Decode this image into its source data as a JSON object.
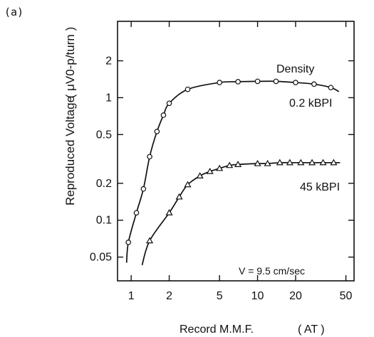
{
  "chart_data": {
    "type": "line",
    "panel_label": "(a)",
    "xlabel": "Record M.M.F.",
    "xunit": "( AT )",
    "ylabel": "Reproduced Voltage",
    "yunit": "( μV0-p/turn )",
    "xscale": "log",
    "yscale": "log",
    "xlim": [
      0.78,
      58
    ],
    "ylim": [
      0.032,
      4.2
    ],
    "xticks": [
      {
        "value": 1,
        "label": "1"
      },
      {
        "value": 2,
        "label": "2"
      },
      {
        "value": 5,
        "label": "5"
      },
      {
        "value": 10,
        "label": "10"
      },
      {
        "value": 20,
        "label": "20"
      },
      {
        "value": 50,
        "label": "50"
      }
    ],
    "yticks": [
      {
        "value": 0.05,
        "label": "0.05"
      },
      {
        "value": 0.1,
        "label": "0.1"
      },
      {
        "value": 0.2,
        "label": "0.2"
      },
      {
        "value": 0.5,
        "label": "0.5"
      },
      {
        "value": 1,
        "label": "1"
      },
      {
        "value": 2,
        "label": "2"
      }
    ],
    "grid": false,
    "legend_title": "Density",
    "annotation": "V = 9.5 cm/sec",
    "series": [
      {
        "name": "0.2 kBPI",
        "marker": "circle",
        "curve_start": [
          0.92,
          0.045
        ],
        "x": [
          0.95,
          1.1,
          1.25,
          1.4,
          1.6,
          1.8,
          2.0,
          2.8,
          5.0,
          7.0,
          10,
          14,
          20,
          28,
          38
        ],
        "y": [
          0.066,
          0.115,
          0.18,
          0.33,
          0.53,
          0.72,
          0.9,
          1.17,
          1.33,
          1.35,
          1.36,
          1.36,
          1.33,
          1.29,
          1.21
        ],
        "curve_end": [
          44,
          1.12
        ]
      },
      {
        "name": "45 kBPI",
        "marker": "triangle",
        "curve_start": [
          1.22,
          0.043
        ],
        "x": [
          1.4,
          2.0,
          2.4,
          2.8,
          3.5,
          4.2,
          5.0,
          6.0,
          7.0,
          10,
          12,
          15,
          18,
          22,
          27,
          33,
          40
        ],
        "y": [
          0.068,
          0.115,
          0.155,
          0.195,
          0.23,
          0.25,
          0.265,
          0.28,
          0.285,
          0.29,
          0.29,
          0.295,
          0.295,
          0.295,
          0.295,
          0.295,
          0.295
        ],
        "curve_end": [
          45,
          0.295
        ]
      }
    ]
  }
}
